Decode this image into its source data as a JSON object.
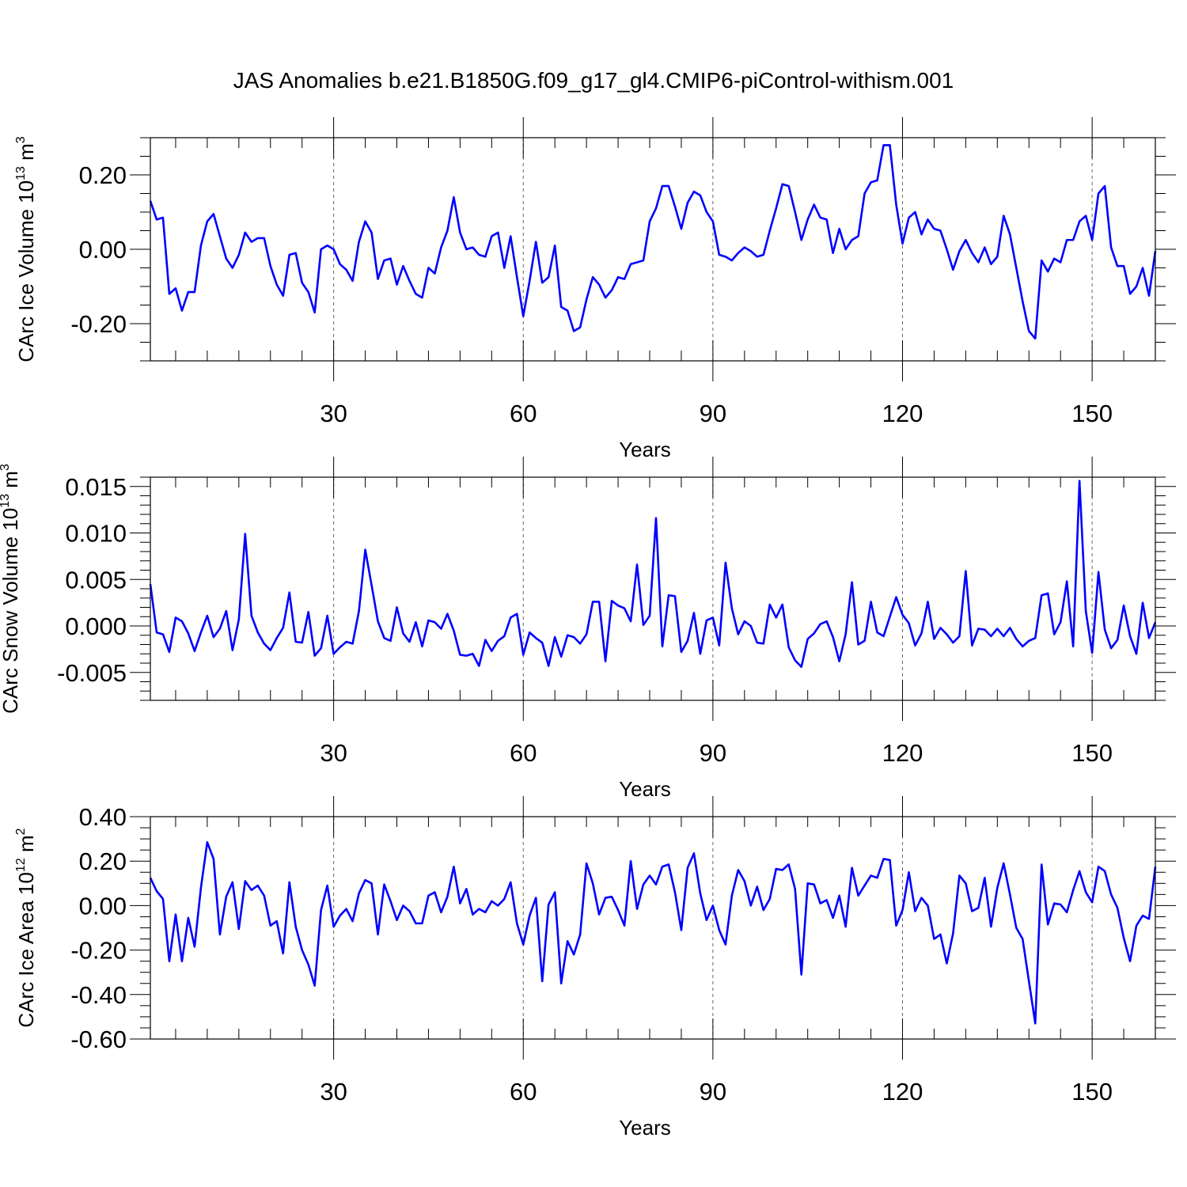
{
  "title": "JAS Anomalies b.e21.B1850G.f09_g17_gl4.CMIP6-piControl-withism.001",
  "line_color": "#0000ff",
  "chart_data": [
    {
      "type": "line",
      "ylabel_prefix": "CArc Ice Volume 10",
      "ylabel_exp": "13",
      "ylabel_unit": " m",
      "ylabel_unit_exp": "3",
      "xlabel": "Years",
      "xlim": [
        1,
        160
      ],
      "ylim": [
        -0.3,
        0.3
      ],
      "xticks": [
        30,
        60,
        90,
        120,
        150
      ],
      "xtick_labels": [
        "30",
        "60",
        "90",
        "120",
        "150"
      ],
      "yticks": [
        -0.2,
        0.0,
        0.2
      ],
      "ytick_labels": [
        "-0.20",
        "0.00",
        "0.20"
      ],
      "grid_x": true,
      "series": [
        {
          "x_start": 1,
          "values": [
            0.13,
            0.08,
            0.085,
            -0.12,
            -0.105,
            -0.165,
            -0.115,
            -0.115,
            0.01,
            0.075,
            0.095,
            0.035,
            -0.025,
            -0.05,
            -0.015,
            0.045,
            0.02,
            0.03,
            0.03,
            -0.045,
            -0.095,
            -0.125,
            -0.015,
            -0.01,
            -0.09,
            -0.115,
            -0.17,
            0.0,
            0.01,
            0.0,
            -0.04,
            -0.055,
            -0.085,
            0.02,
            0.075,
            0.045,
            -0.08,
            -0.03,
            -0.025,
            -0.095,
            -0.045,
            -0.085,
            -0.12,
            -0.13,
            -0.05,
            -0.065,
            0.005,
            0.05,
            0.14,
            0.045,
            0.0,
            0.005,
            -0.015,
            -0.02,
            0.035,
            0.045,
            -0.05,
            0.035,
            -0.075,
            -0.18,
            -0.085,
            0.02,
            -0.09,
            -0.075,
            0.01,
            -0.155,
            -0.165,
            -0.22,
            -0.21,
            -0.135,
            -0.075,
            -0.095,
            -0.13,
            -0.11,
            -0.075,
            -0.08,
            -0.04,
            -0.035,
            -0.03,
            0.075,
            0.11,
            0.17,
            0.17,
            0.115,
            0.055,
            0.125,
            0.155,
            0.145,
            0.1,
            0.075,
            -0.015,
            -0.02,
            -0.03,
            -0.01,
            0.005,
            -0.005,
            -0.02,
            -0.015,
            0.05,
            0.11,
            0.175,
            0.17,
            0.1,
            0.025,
            0.08,
            0.12,
            0.085,
            0.08,
            -0.01,
            0.055,
            0.0,
            0.025,
            0.035,
            0.15,
            0.18,
            0.185,
            0.28,
            0.28,
            0.12,
            0.015,
            0.085,
            0.1,
            0.04,
            0.08,
            0.055,
            0.05,
            0.0,
            -0.055,
            -0.005,
            0.025,
            -0.01,
            -0.035,
            0.005,
            -0.04,
            -0.02,
            0.09,
            0.04,
            -0.05,
            -0.14,
            -0.22,
            -0.24,
            -0.03,
            -0.06,
            -0.025,
            -0.035,
            0.025,
            0.025,
            0.075,
            0.09,
            0.025,
            0.15,
            0.17,
            0.005,
            -0.045,
            -0.045,
            -0.12,
            -0.1,
            -0.05,
            -0.125,
            -0.005
          ]
        }
      ]
    },
    {
      "type": "line",
      "ylabel_prefix": "CArc Snow Volume 10",
      "ylabel_exp": "13",
      "ylabel_unit": " m",
      "ylabel_unit_exp": "3",
      "xlabel": "Years",
      "xlim": [
        1,
        160
      ],
      "ylim": [
        -0.008,
        0.016
      ],
      "xticks": [
        30,
        60,
        90,
        120,
        150
      ],
      "xtick_labels": [
        "30",
        "60",
        "90",
        "120",
        "150"
      ],
      "yticks": [
        -0.005,
        0.0,
        0.005,
        0.01,
        0.015
      ],
      "ytick_labels": [
        "-0.005",
        "0.000",
        "0.005",
        "0.010",
        "0.015"
      ],
      "grid_x": true,
      "series": [
        {
          "x_start": 1,
          "values": [
            0.0045,
            -0.0007,
            -0.0009,
            -0.0028,
            0.0009,
            0.0005,
            -0.0008,
            -0.0027,
            -0.0007,
            0.0011,
            -0.0012,
            -0.0003,
            0.0016,
            -0.0026,
            0.0007,
            0.0099,
            0.0011,
            -0.0007,
            -0.0019,
            -0.0026,
            -0.0013,
            -0.0002,
            0.0036,
            -0.0017,
            -0.0018,
            0.0015,
            -0.0032,
            -0.0024,
            0.0011,
            -0.003,
            -0.0023,
            -0.0017,
            -0.0019,
            0.0016,
            0.0082,
            0.0044,
            0.0005,
            -0.0013,
            -0.0016,
            0.002,
            -0.0008,
            -0.0017,
            0.0004,
            -0.0022,
            0.0006,
            0.0004,
            -0.0003,
            0.0013,
            -0.0005,
            -0.0031,
            -0.0032,
            -0.003,
            -0.0043,
            -0.0015,
            -0.0027,
            -0.0016,
            -0.0011,
            0.0009,
            0.0013,
            -0.0031,
            -0.0007,
            -0.0013,
            -0.0018,
            -0.0043,
            -0.0012,
            -0.0033,
            -0.001,
            -0.0012,
            -0.0019,
            -0.0009,
            0.0026,
            0.0026,
            -0.0038,
            0.0027,
            0.0022,
            0.0019,
            0.0005,
            0.0066,
            0.0001,
            0.0011,
            0.0116,
            -0.0022,
            0.0033,
            0.0032,
            -0.0028,
            -0.0016,
            0.0014,
            -0.003,
            0.0006,
            0.0009,
            -0.0021,
            0.0068,
            0.0019,
            -0.0009,
            0.0005,
            0.0,
            -0.0018,
            -0.0019,
            0.0023,
            0.0009,
            0.0023,
            -0.0023,
            -0.0037,
            -0.0044,
            -0.0014,
            -0.0008,
            0.0002,
            0.0005,
            -0.0012,
            -0.0038,
            -0.0009,
            0.0047,
            -0.002,
            -0.0016,
            0.0026,
            -0.0007,
            -0.0011,
            0.001,
            0.0031,
            0.0012,
            0.0003,
            -0.0021,
            -0.0008,
            0.0026,
            -0.0014,
            -0.0002,
            -0.0009,
            -0.0018,
            -0.0011,
            0.0059,
            -0.0021,
            -0.0003,
            -0.0004,
            -0.0011,
            -0.0003,
            -0.0011,
            -0.0002,
            -0.0014,
            -0.0022,
            -0.0016,
            -0.0013,
            0.0033,
            0.0035,
            -0.0009,
            0.0004,
            0.0048,
            -0.0022,
            0.0156,
            0.0016,
            -0.0029,
            0.0058,
            -0.0004,
            -0.0024,
            -0.0015,
            0.0022,
            -0.0011,
            -0.003,
            0.0025,
            -0.0013,
            0.0004
          ]
        }
      ]
    },
    {
      "type": "line",
      "ylabel_prefix": "CArc Ice Area 10",
      "ylabel_exp": "12",
      "ylabel_unit": " m",
      "ylabel_unit_exp": "2",
      "xlabel": "Years",
      "xlim": [
        1,
        160
      ],
      "ylim": [
        -0.6,
        0.4
      ],
      "xticks": [
        30,
        60,
        90,
        120,
        150
      ],
      "xtick_labels": [
        "30",
        "60",
        "90",
        "120",
        "150"
      ],
      "yticks": [
        -0.6,
        -0.4,
        -0.2,
        0.0,
        0.2,
        0.4
      ],
      "ytick_labels": [
        "-0.60",
        "-0.40",
        "-0.20",
        "0.00",
        "0.20",
        "0.40"
      ],
      "grid_x": true,
      "series": [
        {
          "x_start": 1,
          "values": [
            0.125,
            0.065,
            0.03,
            -0.25,
            -0.04,
            -0.25,
            -0.055,
            -0.185,
            0.08,
            0.285,
            0.21,
            -0.13,
            0.04,
            0.105,
            -0.105,
            0.11,
            0.07,
            0.09,
            0.045,
            -0.09,
            -0.07,
            -0.215,
            0.105,
            -0.095,
            -0.2,
            -0.265,
            -0.36,
            -0.02,
            0.09,
            -0.095,
            -0.045,
            -0.015,
            -0.07,
            0.055,
            0.115,
            0.1,
            -0.13,
            0.095,
            0.02,
            -0.065,
            0.0,
            -0.025,
            -0.08,
            -0.08,
            0.045,
            0.06,
            -0.03,
            0.04,
            0.175,
            0.01,
            0.075,
            -0.04,
            -0.015,
            -0.03,
            0.02,
            0.0,
            0.03,
            0.105,
            -0.08,
            -0.175,
            -0.045,
            0.035,
            -0.34,
            0.005,
            0.06,
            -0.35,
            -0.16,
            -0.22,
            -0.13,
            0.19,
            0.1,
            -0.04,
            0.035,
            0.04,
            -0.02,
            -0.09,
            0.2,
            -0.015,
            0.095,
            0.135,
            0.095,
            0.175,
            0.185,
            0.06,
            -0.11,
            0.17,
            0.235,
            0.055,
            -0.065,
            0.0,
            -0.11,
            -0.175,
            0.045,
            0.16,
            0.11,
            0.0,
            0.085,
            -0.02,
            0.03,
            0.165,
            0.16,
            0.185,
            0.075,
            -0.31,
            0.1,
            0.095,
            0.01,
            0.025,
            -0.055,
            0.045,
            -0.095,
            0.17,
            0.045,
            0.09,
            0.135,
            0.125,
            0.21,
            0.205,
            -0.09,
            -0.02,
            0.15,
            -0.025,
            0.035,
            0.0,
            -0.15,
            -0.13,
            -0.26,
            -0.125,
            0.135,
            0.1,
            -0.025,
            -0.01,
            0.125,
            -0.095,
            0.08,
            0.19,
            0.05,
            -0.1,
            -0.15,
            -0.34,
            -0.53,
            0.185,
            -0.085,
            0.01,
            0.005,
            -0.03,
            0.07,
            0.155,
            0.06,
            0.015,
            0.175,
            0.155,
            0.05,
            -0.01,
            -0.145,
            -0.25,
            -0.09,
            -0.045,
            -0.06,
            0.175
          ]
        }
      ]
    }
  ]
}
